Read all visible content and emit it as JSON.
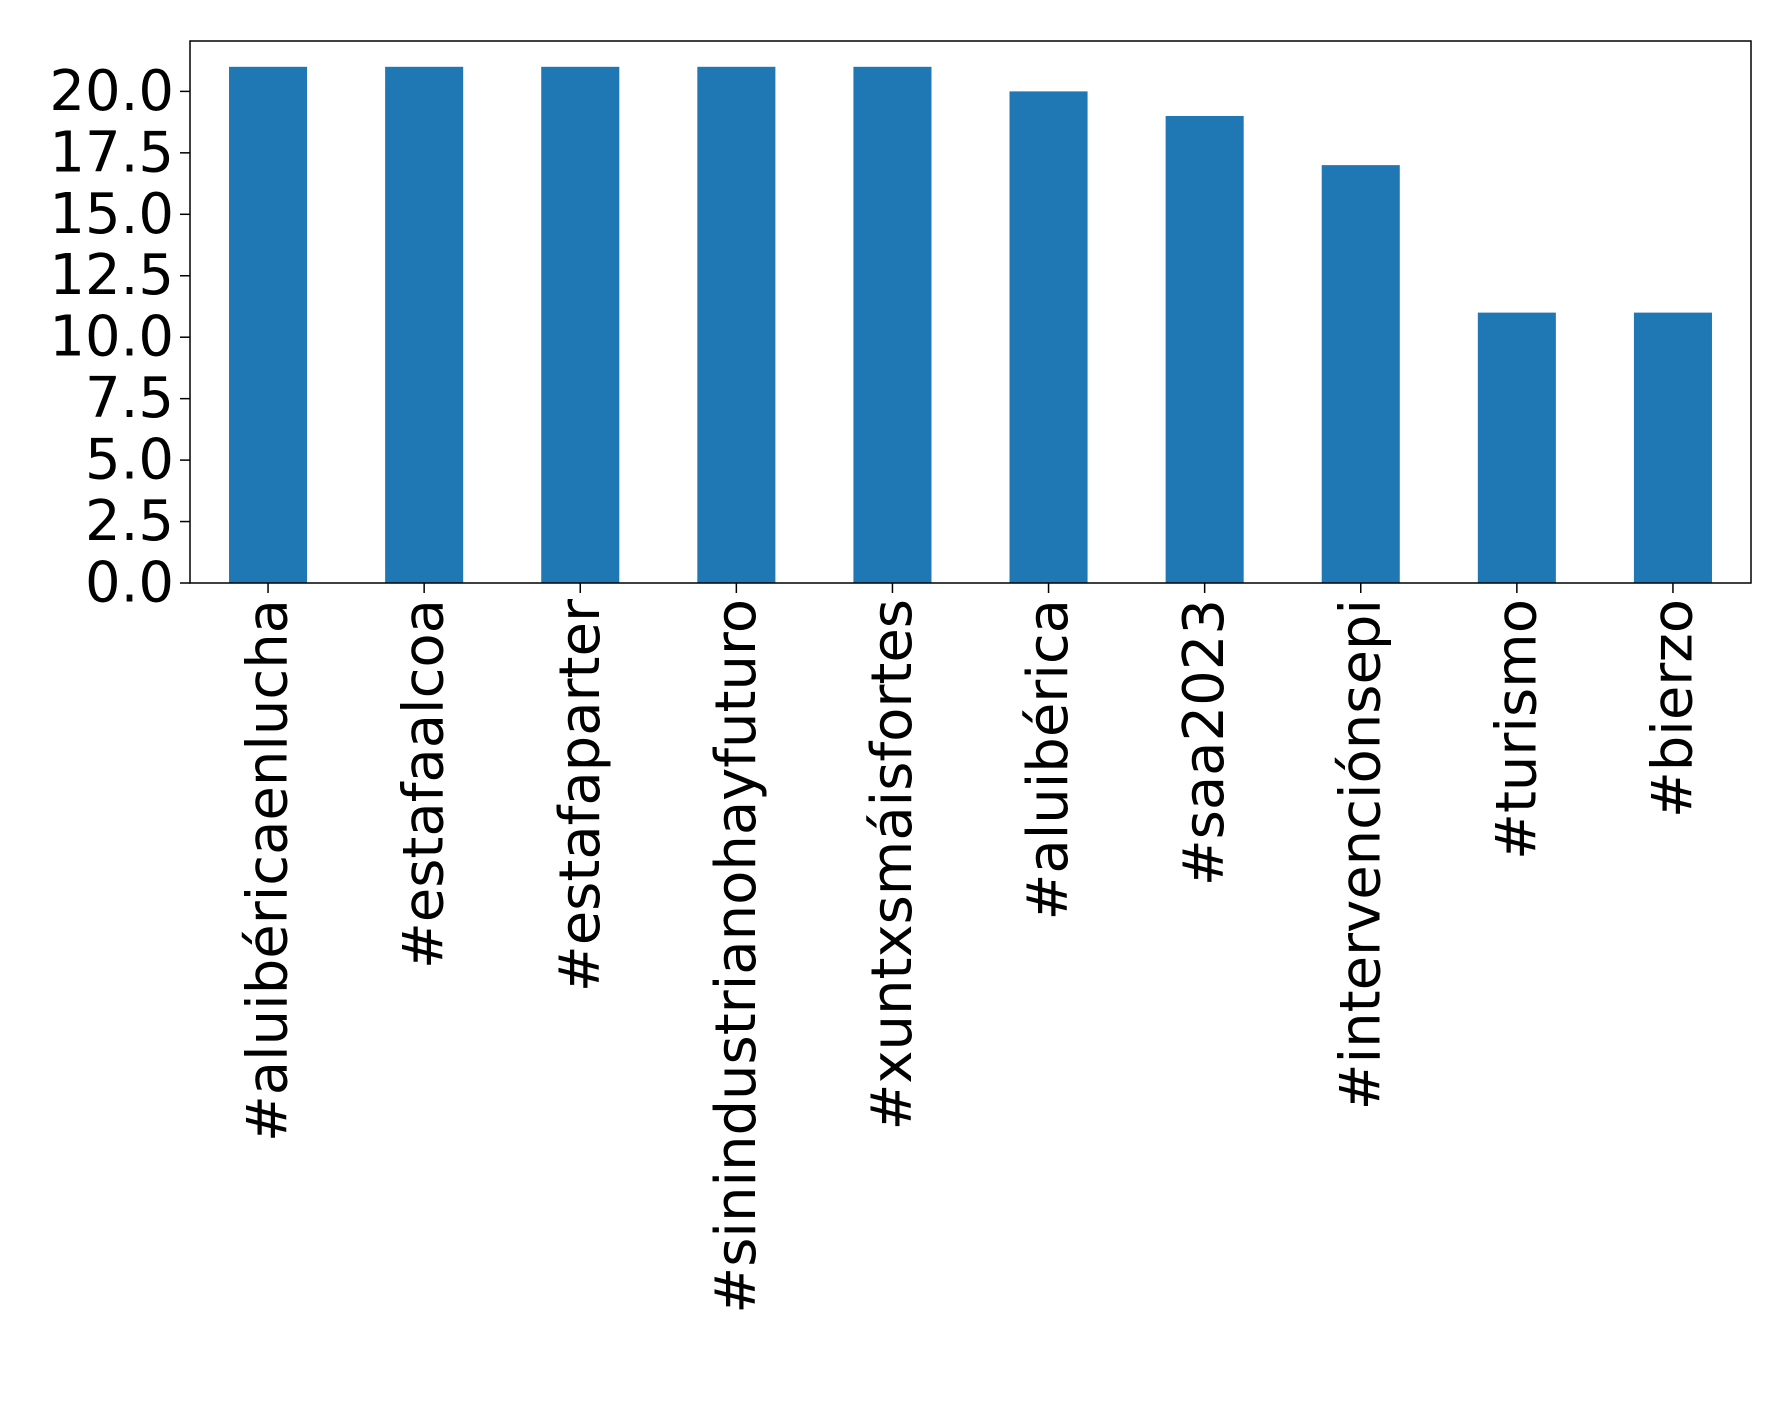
{
  "chart_data": {
    "type": "bar",
    "title": "",
    "xlabel": "",
    "ylabel": "",
    "categories": [
      "#aluibéricaenlucha",
      "#estafaalcoa",
      "#estafaparter",
      "#sinindustrianohayfuturo",
      "#xuntxsmáisfortes",
      "#aluibérica",
      "#saa2023",
      "#intervenciónsepi",
      "#turismo",
      "#bierzo"
    ],
    "values": [
      21,
      21,
      21,
      21,
      21,
      20,
      19,
      17,
      11,
      11
    ],
    "ylim": [
      0,
      22.05
    ],
    "yticks": [
      0.0,
      2.5,
      5.0,
      7.5,
      10.0,
      12.5,
      15.0,
      17.5,
      20.0
    ],
    "ytick_labels": [
      "0.0",
      "2.5",
      "5.0",
      "7.5",
      "10.0",
      "12.5",
      "15.0",
      "17.5",
      "20.0"
    ],
    "grid": false,
    "legend": "none",
    "bar_color": "#1f77b4",
    "x_tick_rotation": "vertical"
  }
}
